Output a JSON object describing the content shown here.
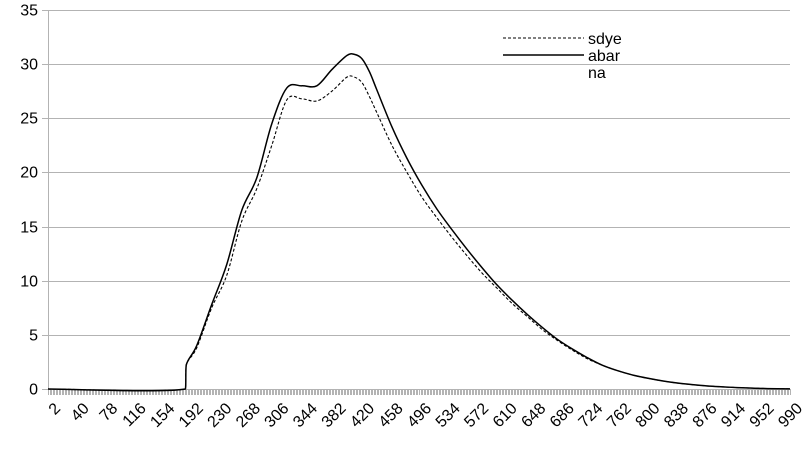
{
  "chart_data": {
    "type": "line",
    "title": "",
    "xlabel": "",
    "ylabel": "",
    "ylim": [
      0,
      35
    ],
    "y_ticks": [
      0,
      5,
      10,
      15,
      20,
      25,
      30,
      35
    ],
    "x_range": [
      2,
      990
    ],
    "x_tick_labels": [
      "2",
      "40",
      "78",
      "116",
      "154",
      "192",
      "230",
      "268",
      "306",
      "344",
      "382",
      "420",
      "458",
      "496",
      "534",
      "572",
      "610",
      "648",
      "686",
      "724",
      "762",
      "800",
      "838",
      "876",
      "914",
      "952",
      "990"
    ],
    "grid": "horizontal",
    "legend_position": "top-right",
    "series": [
      {
        "name": "sdye",
        "color": "#000000",
        "dash": "dashed",
        "x": [
          2,
          185,
          186,
          200,
          220,
          240,
          260,
          280,
          300,
          320,
          340,
          360,
          380,
          400,
          410,
          420,
          430,
          440,
          460,
          480,
          500,
          520,
          540,
          560,
          580,
          600,
          620,
          640,
          660,
          680,
          700,
          720,
          740,
          760,
          780,
          800,
          820,
          840,
          860,
          880,
          900,
          920,
          940,
          960,
          990
        ],
        "y": [
          0,
          0,
          2.2,
          3.8,
          7.5,
          10.5,
          15.5,
          18.5,
          22.5,
          26.7,
          26.8,
          26.6,
          27.5,
          28.8,
          28.8,
          28.3,
          27,
          25.5,
          22.5,
          20,
          17.7,
          15.8,
          14,
          12.3,
          10.7,
          9.3,
          7.9,
          6.7,
          5.5,
          4.5,
          3.6,
          2.8,
          2.2,
          1.7,
          1.3,
          1.0,
          0.75,
          0.55,
          0.4,
          0.28,
          0.2,
          0.13,
          0.08,
          0.04,
          0.01
        ]
      },
      {
        "name": "abar",
        "color": "#000000",
        "dash": "solid",
        "x": [
          2,
          185,
          186,
          200,
          220,
          240,
          260,
          280,
          300,
          320,
          340,
          360,
          380,
          400,
          410,
          420,
          430,
          440,
          460,
          480,
          500,
          520,
          540,
          560,
          580,
          600,
          620,
          640,
          660,
          680,
          700,
          720,
          740,
          760,
          780,
          800,
          820,
          840,
          860,
          880,
          900,
          920,
          940,
          960,
          990
        ],
        "y": [
          0,
          0,
          2.2,
          4,
          7.8,
          11.5,
          16.5,
          19.5,
          24.5,
          27.8,
          28,
          28,
          29.5,
          30.8,
          30.9,
          30.5,
          29.3,
          27.6,
          24.2,
          21.3,
          18.8,
          16.6,
          14.7,
          12.9,
          11.2,
          9.6,
          8.2,
          6.9,
          5.7,
          4.6,
          3.7,
          2.9,
          2.2,
          1.7,
          1.3,
          1.0,
          0.75,
          0.55,
          0.4,
          0.28,
          0.2,
          0.13,
          0.08,
          0.04,
          0.01
        ]
      },
      {
        "name": "na",
        "color": "#000000",
        "dash": "none",
        "x": [],
        "y": []
      }
    ]
  }
}
